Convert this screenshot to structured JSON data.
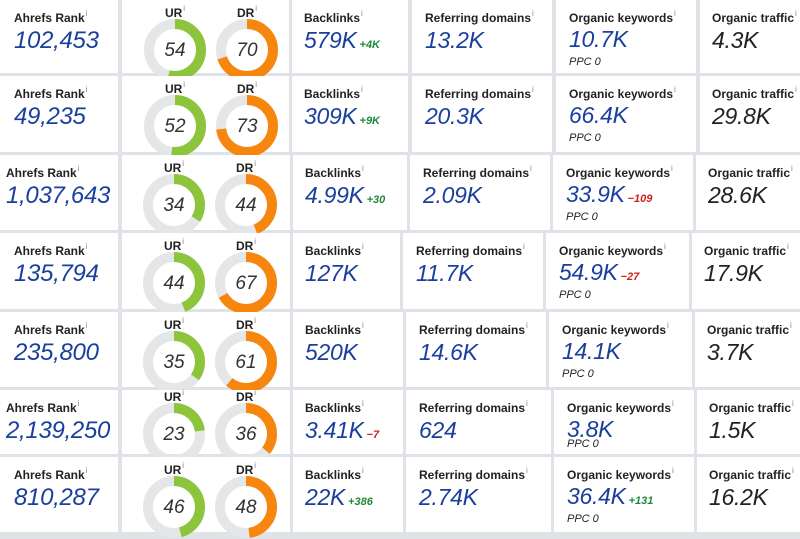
{
  "labels": {
    "rank": "Ahrefs Rank",
    "ur": "UR",
    "dr": "DR",
    "backlinks": "Backlinks",
    "referring_domains": "Referring domains",
    "organic_keywords": "Organic keywords",
    "organic_traffic": "Organic traffic",
    "info": "i"
  },
  "colors": {
    "ur": "#8cc43c",
    "dr": "#f7860f",
    "track": "#e5e6e8",
    "positive": "#1f8a3a",
    "negative": "#d0211b"
  },
  "rows": [
    {
      "rank": "102,453",
      "ur": 54,
      "dr": 70,
      "backlinks": "579K",
      "backlinks_delta": "+4K",
      "backlinks_delta_type": "pos",
      "referring_domains": "13.2K",
      "organic_keywords": "10.7K",
      "keywords_delta": "",
      "keywords_delta_type": "",
      "ppc": "PPC 0",
      "organic_traffic": "4.3K"
    },
    {
      "rank": "49,235",
      "ur": 52,
      "dr": 73,
      "backlinks": "309K",
      "backlinks_delta": "+9K",
      "backlinks_delta_type": "pos",
      "referring_domains": "20.3K",
      "organic_keywords": "66.4K",
      "keywords_delta": "",
      "keywords_delta_type": "",
      "ppc": "PPC 0",
      "organic_traffic": "29.8K"
    },
    {
      "rank": "1,037,643",
      "ur": 34,
      "dr": 44,
      "backlinks": "4.99K",
      "backlinks_delta": "+30",
      "backlinks_delta_type": "pos",
      "referring_domains": "2.09K",
      "organic_keywords": "33.9K",
      "keywords_delta": "−109",
      "keywords_delta_type": "neg",
      "ppc": "PPC 0",
      "organic_traffic": "28.6K"
    },
    {
      "rank": "135,794",
      "ur": 44,
      "dr": 67,
      "backlinks": "127K",
      "backlinks_delta": "",
      "backlinks_delta_type": "",
      "referring_domains": "11.7K",
      "organic_keywords": "54.9K",
      "keywords_delta": "−27",
      "keywords_delta_type": "neg",
      "ppc": "PPC 0",
      "organic_traffic": "17.9K"
    },
    {
      "rank": "235,800",
      "ur": 35,
      "dr": 61,
      "backlinks": "520K",
      "backlinks_delta": "",
      "backlinks_delta_type": "",
      "referring_domains": "14.6K",
      "organic_keywords": "14.1K",
      "keywords_delta": "",
      "keywords_delta_type": "",
      "ppc": "PPC 0",
      "organic_traffic": "3.7K"
    },
    {
      "rank": "2,139,250",
      "ur": 23,
      "dr": 36,
      "backlinks": "3.41K",
      "backlinks_delta": "−7",
      "backlinks_delta_type": "neg",
      "referring_domains": "624",
      "organic_keywords": "3.8K",
      "keywords_delta": "",
      "keywords_delta_type": "",
      "ppc": "PPC 0",
      "organic_traffic": "1.5K"
    },
    {
      "rank": "810,287",
      "ur": 46,
      "dr": 48,
      "backlinks": "22K",
      "backlinks_delta": "+386",
      "backlinks_delta_type": "pos",
      "referring_domains": "2.74K",
      "organic_keywords": "36.4K",
      "keywords_delta": "+131",
      "keywords_delta_type": "pos",
      "ppc": "PPC 0",
      "organic_traffic": "16.2K"
    }
  ]
}
